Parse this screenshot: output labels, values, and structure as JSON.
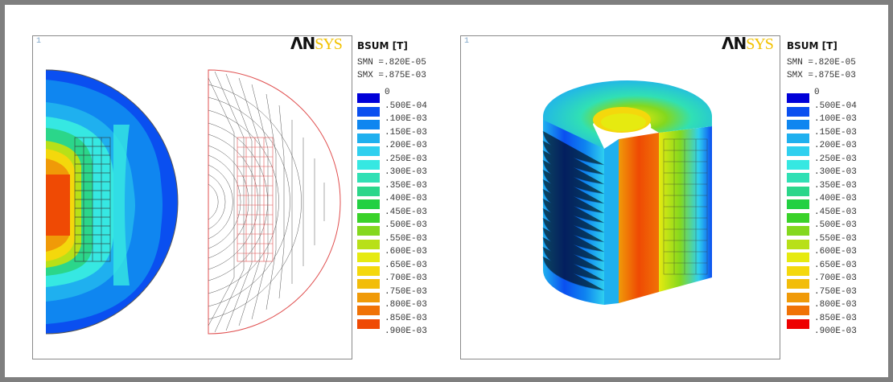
{
  "panels": [
    {
      "window_number": "1",
      "logo": {
        "an": "ΛΝ",
        "sys": "SYS"
      },
      "legend_title": "BSUM [T]",
      "smn": "SMN =.820E-05",
      "smx": "SMX =.875E-03"
    },
    {
      "window_number": "1",
      "logo": {
        "an": "ΛΝ",
        "sys": "SYS"
      },
      "legend_title": "BSUM [T]",
      "smn": "SMN =.820E-05",
      "smx": "SMX =.875E-03"
    }
  ],
  "legend_labels": [
    "0",
    ".500E-04",
    ".100E-03",
    ".150E-03",
    ".200E-03",
    ".250E-03",
    ".300E-03",
    ".350E-03",
    ".400E-03",
    ".450E-03",
    ".500E-03",
    ".550E-03",
    ".600E-03",
    ".650E-03",
    ".700E-03",
    ".750E-03",
    ".800E-03",
    ".850E-03",
    ".900E-03"
  ],
  "legend_colors": [
    "#0000d8",
    "#0a4ff0",
    "#0f86f0",
    "#1fb0ef",
    "#2fd0ef",
    "#36e8e2",
    "#30e0b4",
    "#2bd68a",
    "#22d042",
    "#3ad22a",
    "#84d81e",
    "#b8e018",
    "#e6ea10",
    "#f4d80c",
    "#f2bd0a",
    "#f09a08",
    "#f07206",
    "#ef4a04"
  ],
  "legend_colors_panel2": [
    "#0000d8",
    "#0a4ff0",
    "#0f86f0",
    "#1fb0ef",
    "#2fd0ef",
    "#36e8e2",
    "#30e0b4",
    "#2bd68a",
    "#22d042",
    "#3ad22a",
    "#84d81e",
    "#b8e018",
    "#e6ea10",
    "#f4d80c",
    "#f2bd0a",
    "#f09a08",
    "#f07206",
    "#ee0000"
  ]
}
